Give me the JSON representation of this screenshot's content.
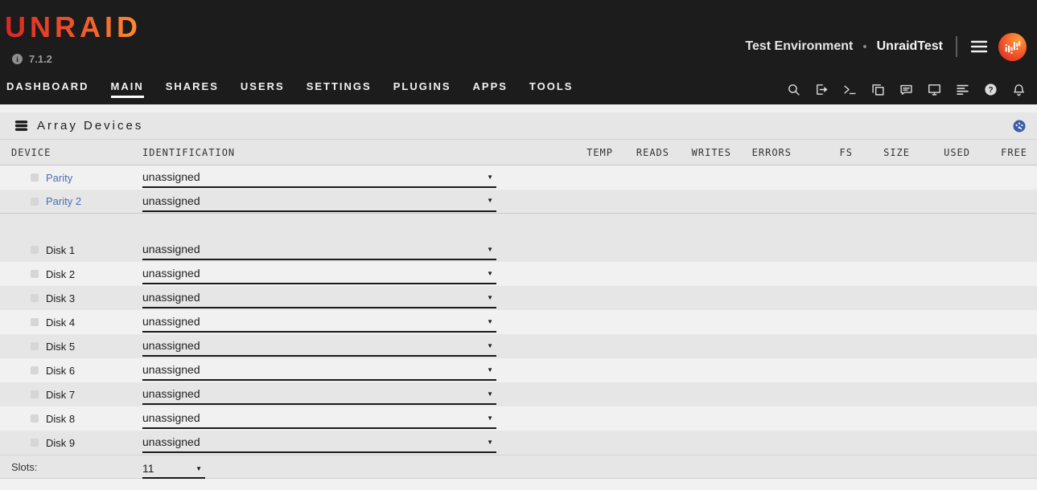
{
  "header": {
    "logo_text": "UNRAID",
    "version": "7.1.2",
    "info_icon_glyph": "i",
    "server_label": "Test Environment",
    "server_sep": "•",
    "server_name": "UnraidTest"
  },
  "nav": {
    "items": [
      {
        "label": "DASHBOARD",
        "active": false
      },
      {
        "label": "MAIN",
        "active": true
      },
      {
        "label": "SHARES",
        "active": false
      },
      {
        "label": "USERS",
        "active": false
      },
      {
        "label": "SETTINGS",
        "active": false
      },
      {
        "label": "PLUGINS",
        "active": false
      },
      {
        "label": "APPS",
        "active": false
      },
      {
        "label": "TOOLS",
        "active": false
      }
    ],
    "icons": [
      "search-icon",
      "logout-icon",
      "terminal-icon",
      "copy-icon",
      "feedback-icon",
      "monitor-icon",
      "logs-icon",
      "help-icon",
      "notifications-icon"
    ]
  },
  "array_devices": {
    "title": "Array Devices",
    "title_icon": "disk-stack-icon",
    "corner_icon": "gauge-icon",
    "columns": {
      "device": "DEVICE",
      "identification": "IDENTIFICATION",
      "temp": "TEMP",
      "reads": "READS",
      "writes": "WRITES",
      "errors": "ERRORS",
      "fs": "FS",
      "size": "SIZE",
      "used": "USED",
      "free": "FREE"
    },
    "select_arrow": "▼",
    "rows": [
      {
        "device": "Parity",
        "identification": "unassigned",
        "link": true
      },
      {
        "device": "Parity 2",
        "identification": "unassigned",
        "link": true
      },
      {
        "device": "Disk 1",
        "identification": "unassigned",
        "link": false
      },
      {
        "device": "Disk 2",
        "identification": "unassigned",
        "link": false
      },
      {
        "device": "Disk 3",
        "identification": "unassigned",
        "link": false
      },
      {
        "device": "Disk 4",
        "identification": "unassigned",
        "link": false
      },
      {
        "device": "Disk 5",
        "identification": "unassigned",
        "link": false
      },
      {
        "device": "Disk 6",
        "identification": "unassigned",
        "link": false
      },
      {
        "device": "Disk 7",
        "identification": "unassigned",
        "link": false
      },
      {
        "device": "Disk 8",
        "identification": "unassigned",
        "link": false
      },
      {
        "device": "Disk 9",
        "identification": "unassigned",
        "link": false
      }
    ],
    "slots": {
      "label": "Slots:",
      "value": "11"
    }
  },
  "colors": {
    "header_bg": "#1c1c1c",
    "logo_gradient_start": "#dd2423",
    "logo_gradient_end": "#ff8f2e",
    "link_blue": "#4a6db5",
    "gauge_blue": "#3a5da8",
    "row_light": "#f1f1f1",
    "row_dark": "#e6e6e6"
  }
}
